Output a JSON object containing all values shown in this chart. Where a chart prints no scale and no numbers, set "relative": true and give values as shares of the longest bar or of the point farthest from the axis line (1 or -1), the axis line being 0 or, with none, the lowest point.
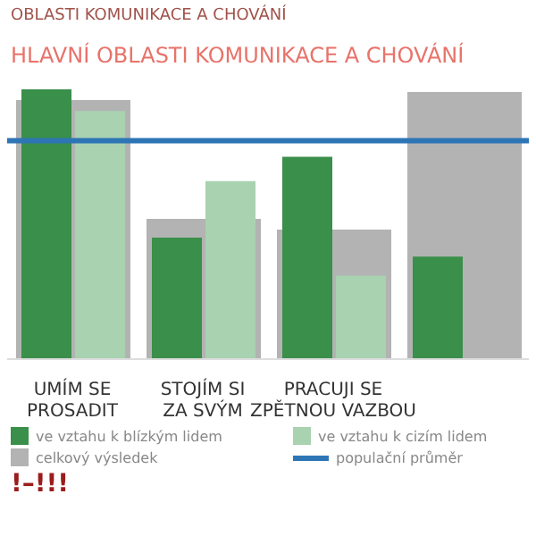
{
  "chart_data": {
    "type": "bar",
    "subtitle": "OBLASTI KOMUNIKACE A CHOVÁNÍ",
    "title": "HLAVNÍ OBLASTI KOMUNIKACE A CHOVÁNÍ",
    "relative": true,
    "categories": [
      "UMÍM SE PROSADIT",
      "STOJÍM SI ZA SVÝM",
      "PRACUJI SE ZPĚTNOU VAZBOU",
      null
    ],
    "series": [
      {
        "name": "celkový výsledek",
        "color": "#b3b3b3",
        "values": [
          0.96,
          0.52,
          0.48,
          0.99
        ]
      },
      {
        "name": "ve vztahu k blízkým lidem",
        "color": "#3a8f4a",
        "values": [
          1,
          0.45,
          0.75,
          0.38
        ]
      },
      {
        "name": "ve vztahu k cizím lidem",
        "color": "#a8d2b0",
        "values": [
          0.92,
          0.66,
          0.31,
          null
        ]
      }
    ],
    "ref_lines": [
      {
        "axis": "y",
        "value": 0.81,
        "label": "populační průměr",
        "color": "#2e75b6"
      }
    ],
    "legend": "bottom",
    "annotations": [
      "!–!!!"
    ]
  }
}
